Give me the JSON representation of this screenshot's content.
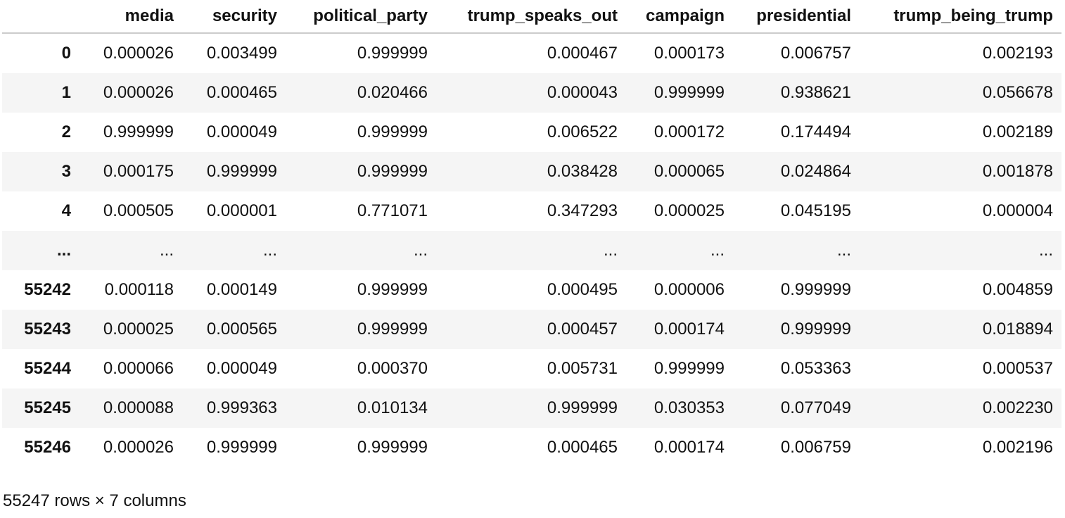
{
  "table": {
    "columns": [
      "media",
      "security",
      "political_party",
      "trump_speaks_out",
      "campaign",
      "presidential",
      "trump_being_trump"
    ],
    "rows": [
      {
        "index": "0",
        "cells": [
          "0.000026",
          "0.003499",
          "0.999999",
          "0.000467",
          "0.000173",
          "0.006757",
          "0.002193"
        ]
      },
      {
        "index": "1",
        "cells": [
          "0.000026",
          "0.000465",
          "0.020466",
          "0.000043",
          "0.999999",
          "0.938621",
          "0.056678"
        ]
      },
      {
        "index": "2",
        "cells": [
          "0.999999",
          "0.000049",
          "0.999999",
          "0.006522",
          "0.000172",
          "0.174494",
          "0.002189"
        ]
      },
      {
        "index": "3",
        "cells": [
          "0.000175",
          "0.999999",
          "0.999999",
          "0.038428",
          "0.000065",
          "0.024864",
          "0.001878"
        ]
      },
      {
        "index": "4",
        "cells": [
          "0.000505",
          "0.000001",
          "0.771071",
          "0.347293",
          "0.000025",
          "0.045195",
          "0.000004"
        ]
      },
      {
        "index": "...",
        "cells": [
          "...",
          "...",
          "...",
          "...",
          "...",
          "...",
          "..."
        ]
      },
      {
        "index": "55242",
        "cells": [
          "0.000118",
          "0.000149",
          "0.999999",
          "0.000495",
          "0.000006",
          "0.999999",
          "0.004859"
        ]
      },
      {
        "index": "55243",
        "cells": [
          "0.000025",
          "0.000565",
          "0.999999",
          "0.000457",
          "0.000174",
          "0.999999",
          "0.018894"
        ]
      },
      {
        "index": "55244",
        "cells": [
          "0.000066",
          "0.000049",
          "0.000370",
          "0.005731",
          "0.999999",
          "0.053363",
          "0.000537"
        ]
      },
      {
        "index": "55245",
        "cells": [
          "0.000088",
          "0.999363",
          "0.010134",
          "0.999999",
          "0.030353",
          "0.077049",
          "0.002230"
        ]
      },
      {
        "index": "55246",
        "cells": [
          "0.000026",
          "0.999999",
          "0.999999",
          "0.000465",
          "0.000174",
          "0.006759",
          "0.002196"
        ]
      }
    ],
    "footer": "55247 rows × 7 columns"
  }
}
